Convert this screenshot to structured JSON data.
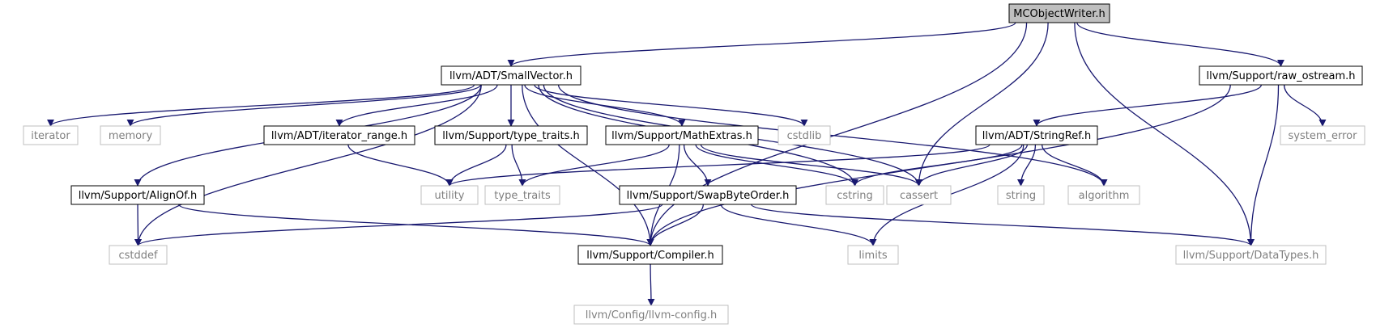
{
  "graph": {
    "colors": {
      "edge": "#191970",
      "root_fill": "#bfbfbf",
      "primary_border": "#000000",
      "external_border": "#bfbfbf",
      "external_text": "#7f7f7f"
    },
    "nodes": [
      {
        "id": "mcobjectwriter",
        "label": "MCObjectWriter.h",
        "kind": "root"
      },
      {
        "id": "smallvector",
        "label": "llvm/ADT/SmallVector.h",
        "kind": "primary"
      },
      {
        "id": "raw_ostream",
        "label": "llvm/Support/raw_ostream.h",
        "kind": "primary"
      },
      {
        "id": "iterator",
        "label": "iterator",
        "kind": "external"
      },
      {
        "id": "memory",
        "label": "memory",
        "kind": "external"
      },
      {
        "id": "iterator_range",
        "label": "llvm/ADT/iterator_range.h",
        "kind": "primary"
      },
      {
        "id": "type_traits_h",
        "label": "llvm/Support/type_traits.h",
        "kind": "primary"
      },
      {
        "id": "mathextras",
        "label": "llvm/Support/MathExtras.h",
        "kind": "primary"
      },
      {
        "id": "cstdlib",
        "label": "cstdlib",
        "kind": "external"
      },
      {
        "id": "stringref",
        "label": "llvm/ADT/StringRef.h",
        "kind": "primary"
      },
      {
        "id": "system_error",
        "label": "system_error",
        "kind": "external"
      },
      {
        "id": "alignof",
        "label": "llvm/Support/AlignOf.h",
        "kind": "primary"
      },
      {
        "id": "utility",
        "label": "utility",
        "kind": "external"
      },
      {
        "id": "type_traits",
        "label": "type_traits",
        "kind": "external"
      },
      {
        "id": "swapbyteorder",
        "label": "llvm/Support/SwapByteOrder.h",
        "kind": "primary"
      },
      {
        "id": "cstring",
        "label": "cstring",
        "kind": "external"
      },
      {
        "id": "cassert",
        "label": "cassert",
        "kind": "external"
      },
      {
        "id": "string",
        "label": "string",
        "kind": "external"
      },
      {
        "id": "algorithm",
        "label": "algorithm",
        "kind": "external"
      },
      {
        "id": "cstddef",
        "label": "cstddef",
        "kind": "external"
      },
      {
        "id": "compiler",
        "label": "llvm/Support/Compiler.h",
        "kind": "primary"
      },
      {
        "id": "limits",
        "label": "limits",
        "kind": "external"
      },
      {
        "id": "datatypes",
        "label": "llvm/Support/DataTypes.h",
        "kind": "external"
      },
      {
        "id": "llvm_config",
        "label": "llvm/Config/llvm-config.h",
        "kind": "external"
      }
    ],
    "edges": [
      {
        "from": "mcobjectwriter",
        "to": "smallvector"
      },
      {
        "from": "mcobjectwriter",
        "to": "raw_ostream"
      },
      {
        "from": "mcobjectwriter",
        "to": "cassert"
      },
      {
        "from": "mcobjectwriter",
        "to": "compiler"
      },
      {
        "from": "mcobjectwriter",
        "to": "datatypes"
      },
      {
        "from": "smallvector",
        "to": "iterator"
      },
      {
        "from": "smallvector",
        "to": "memory"
      },
      {
        "from": "smallvector",
        "to": "iterator_range"
      },
      {
        "from": "smallvector",
        "to": "type_traits_h"
      },
      {
        "from": "smallvector",
        "to": "mathextras"
      },
      {
        "from": "smallvector",
        "to": "cstdlib"
      },
      {
        "from": "smallvector",
        "to": "cstring"
      },
      {
        "from": "smallvector",
        "to": "cassert"
      },
      {
        "from": "smallvector",
        "to": "algorithm"
      },
      {
        "from": "smallvector",
        "to": "alignof"
      },
      {
        "from": "smallvector",
        "to": "cstddef"
      },
      {
        "from": "smallvector",
        "to": "compiler"
      },
      {
        "from": "raw_ostream",
        "to": "stringref"
      },
      {
        "from": "raw_ostream",
        "to": "system_error"
      },
      {
        "from": "raw_ostream",
        "to": "compiler"
      },
      {
        "from": "raw_ostream",
        "to": "datatypes"
      },
      {
        "from": "iterator_range",
        "to": "utility"
      },
      {
        "from": "type_traits_h",
        "to": "utility"
      },
      {
        "from": "type_traits_h",
        "to": "type_traits"
      },
      {
        "from": "mathextras",
        "to": "type_traits"
      },
      {
        "from": "mathextras",
        "to": "swapbyteorder"
      },
      {
        "from": "mathextras",
        "to": "cstring"
      },
      {
        "from": "mathextras",
        "to": "cassert"
      },
      {
        "from": "mathextras",
        "to": "compiler"
      },
      {
        "from": "stringref",
        "to": "utility"
      },
      {
        "from": "stringref",
        "to": "cstring"
      },
      {
        "from": "stringref",
        "to": "cassert"
      },
      {
        "from": "stringref",
        "to": "string"
      },
      {
        "from": "stringref",
        "to": "algorithm"
      },
      {
        "from": "stringref",
        "to": "limits"
      },
      {
        "from": "alignof",
        "to": "cstddef"
      },
      {
        "from": "alignof",
        "to": "compiler"
      },
      {
        "from": "swapbyteorder",
        "to": "cstddef"
      },
      {
        "from": "swapbyteorder",
        "to": "compiler"
      },
      {
        "from": "swapbyteorder",
        "to": "limits"
      },
      {
        "from": "swapbyteorder",
        "to": "datatypes"
      },
      {
        "from": "compiler",
        "to": "llvm_config"
      }
    ]
  }
}
